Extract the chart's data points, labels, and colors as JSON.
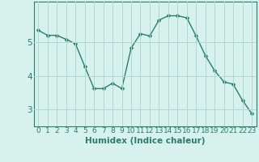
{
  "x": [
    0,
    1,
    2,
    3,
    4,
    5,
    6,
    7,
    8,
    9,
    10,
    11,
    12,
    13,
    14,
    15,
    16,
    17,
    18,
    19,
    20,
    21,
    22,
    23
  ],
  "y": [
    5.35,
    5.2,
    5.2,
    5.08,
    4.95,
    4.28,
    3.62,
    3.62,
    3.78,
    3.62,
    4.82,
    5.25,
    5.18,
    5.65,
    5.78,
    5.78,
    5.72,
    5.18,
    4.6,
    4.15,
    3.82,
    3.75,
    3.27,
    2.88
  ],
  "line_color": "#2a7d6e",
  "marker": "D",
  "marker_size": 2.5,
  "line_width": 1.0,
  "background_color": "#d7f2ed",
  "grid_color": "#b0d9d2",
  "xlabel": "Humidex (Indice chaleur)",
  "xlabel_fontsize": 7.5,
  "tick_fontsize": 6.5,
  "ytick_fontsize": 7.5,
  "ylim": [
    2.5,
    6.2
  ],
  "xlim": [
    -0.5,
    23.5
  ],
  "yticks": [
    3,
    4,
    5
  ],
  "xticks": [
    0,
    1,
    2,
    3,
    4,
    5,
    6,
    7,
    8,
    9,
    10,
    11,
    12,
    13,
    14,
    15,
    16,
    17,
    18,
    19,
    20,
    21,
    22,
    23
  ]
}
